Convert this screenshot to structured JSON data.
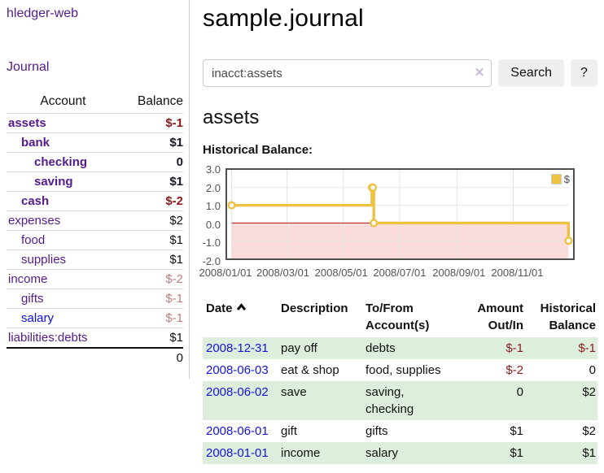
{
  "sidebar": {
    "brand": "hledger-web",
    "nav": {
      "journal": "Journal"
    },
    "table": {
      "account_header": "Account",
      "balance_header": "Balance"
    },
    "accounts": [
      {
        "name": "assets",
        "balance": "$-1"
      },
      {
        "name": "bank",
        "balance": "$1"
      },
      {
        "name": "checking",
        "balance": "0"
      },
      {
        "name": "saving",
        "balance": "$1"
      },
      {
        "name": "cash",
        "balance": "$-2"
      },
      {
        "name": "expenses",
        "balance": "$2"
      },
      {
        "name": "food",
        "balance": "$1"
      },
      {
        "name": "supplies",
        "balance": "$1"
      },
      {
        "name": "income",
        "balance": "$-2"
      },
      {
        "name": "gifts",
        "balance": "$-1"
      },
      {
        "name": "salary",
        "balance": "$-1"
      },
      {
        "name": "liabilities:debts",
        "balance": "$1"
      }
    ],
    "total": "0"
  },
  "main": {
    "title": "sample.journal",
    "search": {
      "value": "inacct:assets",
      "clear": "✕",
      "button": "Search",
      "help": "?"
    },
    "account_title": "assets",
    "chart_heading": "Historical Balance:"
  },
  "chart_data": {
    "type": "line",
    "style": "steps",
    "title": "Historical Balance of assets",
    "x": [
      "2008-01-01",
      "2008-06-01",
      "2008-06-02",
      "2008-06-03",
      "2008-12-31"
    ],
    "values": [
      1,
      2,
      2,
      0,
      -1
    ],
    "x_range": [
      "2008-01-01",
      "2008-12-31"
    ],
    "ylim": [
      -2,
      3
    ],
    "y_ticks": [
      3.0,
      2.0,
      1.0,
      0.0,
      -1.0,
      -2.0
    ],
    "x_ticks": [
      "2008/01/01",
      "2008/03/01",
      "2008/05/01",
      "2008/07/01",
      "2008/09/01",
      "2008/11/01"
    ],
    "legend": [
      {
        "label": "$",
        "color": "#edc240"
      }
    ],
    "legend_position": "top-right",
    "grid": true,
    "colors": {
      "line": "#edc240",
      "marker_fill": "#ffffff",
      "grid": "#e3e3e3",
      "zero_line": "#a01010",
      "negative_fill": "#fadbdb",
      "axis_text": "#545454",
      "border": "#4e4e4e"
    }
  },
  "register": {
    "headers": {
      "date": "Date",
      "description": "Description",
      "account": "To/From Account(s)",
      "amount": "Amount Out/In",
      "balance": "Historical Balance"
    },
    "sort": {
      "column": "Date",
      "direction": "ascending"
    },
    "rows": [
      {
        "date": "2008-12-31",
        "description": "pay off",
        "accounts": "debts",
        "amount": "$-1",
        "balance": "$-1"
      },
      {
        "date": "2008-06-03",
        "description": "eat & shop",
        "accounts": "food, supplies",
        "amount": "$-2",
        "balance": "0"
      },
      {
        "date": "2008-06-02",
        "description": "save",
        "accounts": "saving, checking",
        "amount": "0",
        "balance": "$2"
      },
      {
        "date": "2008-06-01",
        "description": "gift",
        "accounts": "gifts",
        "amount": "$1",
        "balance": "$2"
      },
      {
        "date": "2008-01-01",
        "description": "income",
        "accounts": "salary",
        "amount": "$1",
        "balance": "$1"
      }
    ]
  }
}
